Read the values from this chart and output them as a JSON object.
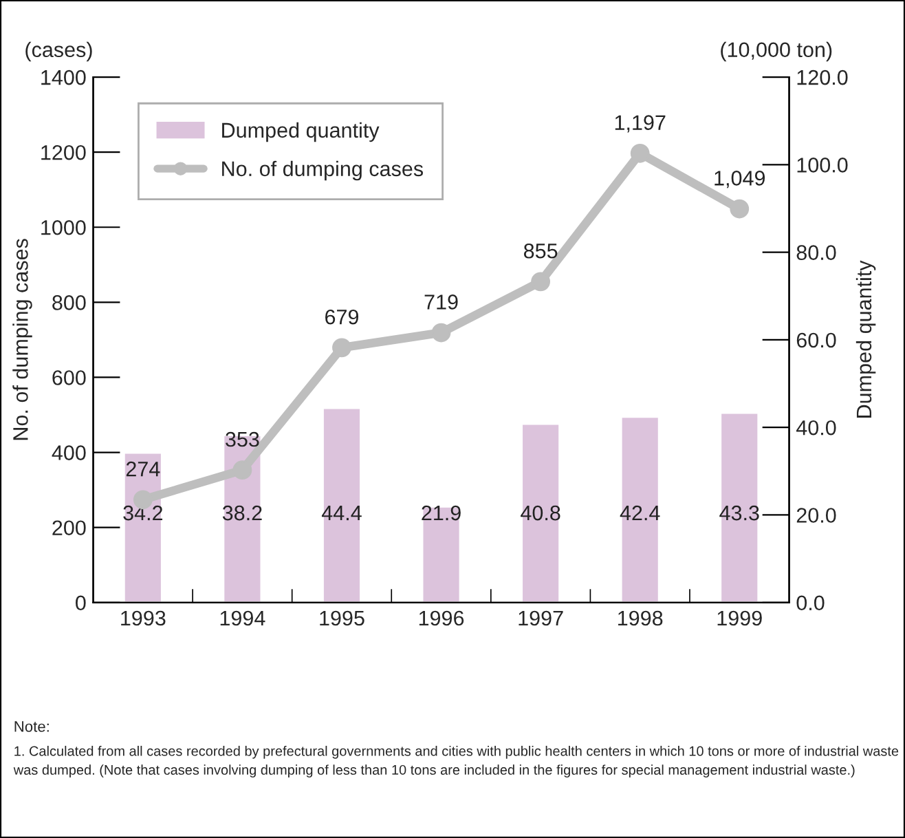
{
  "chart_data": {
    "type": "bar",
    "categories": [
      "1993",
      "1994",
      "1995",
      "1996",
      "1997",
      "1998",
      "1999"
    ],
    "series": [
      {
        "name": "Dumped quantity",
        "axis": "y2",
        "color": "#dcc3dc",
        "values": [
          34.2,
          38.2,
          44.4,
          21.9,
          40.8,
          42.4,
          43.3
        ],
        "value_labels": [
          "34.2",
          "38.2",
          "44.4",
          "21.9",
          "40.8",
          "42.4",
          "43.3"
        ]
      },
      {
        "name": "No. of dumping cases",
        "type": "line",
        "axis": "y",
        "color": "#bebebe",
        "marker": "circle",
        "values": [
          274,
          353,
          679,
          719,
          855,
          1197,
          1049
        ],
        "value_labels": [
          "274",
          "353",
          "679",
          "719",
          "855",
          "1,197",
          "1,049"
        ]
      }
    ],
    "ylabel": "No. of dumping cases",
    "y2label": "Dumped quantity",
    "ylim": [
      0,
      1400
    ],
    "yticks": [
      0,
      200,
      400,
      600,
      800,
      1000,
      1200,
      1400
    ],
    "y2lim": [
      0,
      120
    ],
    "y2ticks": [
      {
        "value": 0,
        "label": "0.0"
      },
      {
        "value": 20,
        "label": "20.0"
      },
      {
        "value": 40,
        "label": "40.0"
      },
      {
        "value": 60,
        "label": "60.0"
      },
      {
        "value": 80,
        "label": "80.0"
      },
      {
        "value": 100,
        "label": "100.0"
      },
      {
        "value": 120,
        "label": "120.0"
      }
    ],
    "legend": "top left",
    "grid": false,
    "annotations": [
      "(cases)",
      "(10,000 ton)",
      "Note:",
      "1. Calculated from all cases recorded by prefectural governments and cities with public health centers in which 10 tons or more of industrial waste was dumped. (Note that cases involving dumping of less than 10 tons are included in the figures for special management industrial waste.)"
    ]
  }
}
